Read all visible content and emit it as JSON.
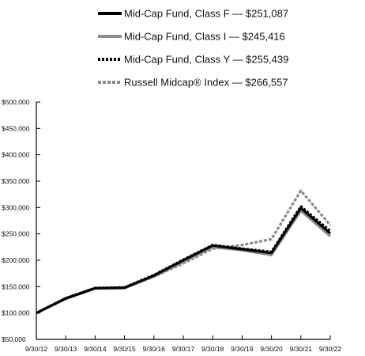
{
  "chart_data": {
    "type": "line",
    "x": [
      "9/30/12",
      "9/30/13",
      "9/30/14",
      "9/30/15",
      "9/30/16",
      "9/30/17",
      "9/30/18",
      "9/30/19",
      "9/30/20",
      "9/30/21",
      "9/30/22"
    ],
    "y_ticks": [
      "$50,000",
      "$100,000",
      "$150,000",
      "$200,000",
      "$250,000",
      "$300,000",
      "$350,000",
      "$400,000",
      "$450,000",
      "$500,000"
    ],
    "ylim": [
      50000,
      500000
    ],
    "grid": false,
    "legend_position": "top",
    "series": [
      {
        "name": "Mid-Cap Fund, Class F — $251,087",
        "color": "#000000",
        "style": "solid",
        "values": [
          100000,
          127500,
          147000,
          148000,
          171000,
          200000,
          228000,
          221000,
          214000,
          299000,
          251087
        ]
      },
      {
        "name": "Mid-Cap Fund, Class I — $245,416",
        "color": "#8c8c8c",
        "style": "solid",
        "values": [
          100000,
          127000,
          146500,
          147000,
          169500,
          197000,
          225000,
          219000,
          210000,
          294000,
          245416
        ]
      },
      {
        "name": "Mid-Cap Fund, Class Y — $255,439",
        "color": "#000000",
        "style": "dotted",
        "values": [
          100000,
          128000,
          147500,
          148500,
          172000,
          201000,
          229000,
          222000,
          216000,
          302000,
          255439
        ]
      },
      {
        "name": "Russell Midcap® Index — $266,557",
        "color": "#8c8c8c",
        "style": "dashed",
        "values": [
          100000,
          128500,
          147000,
          147500,
          169000,
          194000,
          222000,
          229000,
          240000,
          332000,
          266557
        ]
      }
    ]
  }
}
